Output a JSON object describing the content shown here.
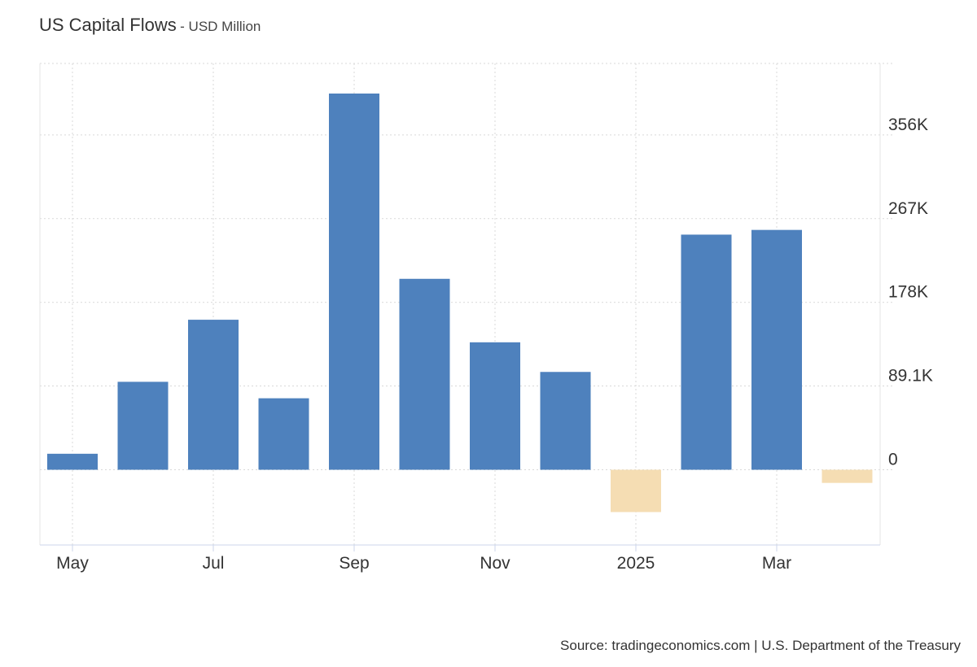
{
  "header": {
    "title": "US Capital Flows",
    "subtitle": "- USD Million"
  },
  "footer": {
    "source": "Source: tradingeconomics.com | U.S. Department of the Treasury"
  },
  "chart_data": {
    "type": "bar",
    "title": "US Capital Flows",
    "subtitle": "- USD Million",
    "xlabel": "",
    "ylabel": "",
    "y_axis_position": "right",
    "grid": true,
    "x_tick_labels": [
      "May",
      "Jul",
      "Sep",
      "Nov",
      "2025",
      "Mar"
    ],
    "x_tick_months": [
      "2024-05",
      "2024-07",
      "2024-09",
      "2024-11",
      "2025-01",
      "2025-03"
    ],
    "y_tick_labels": [
      "0",
      "89.1K",
      "178K",
      "267K",
      "356K"
    ],
    "y_tick_values": [
      0,
      89100,
      178000,
      267000,
      356000
    ],
    "ylim": [
      -80000,
      432000
    ],
    "categories": [
      "2024-05",
      "2024-06",
      "2024-07",
      "2024-08",
      "2024-09",
      "2024-10",
      "2024-11",
      "2024-12",
      "2025-01",
      "2025-02",
      "2025-03",
      "2025-04"
    ],
    "values": [
      17000,
      93500,
      159500,
      76000,
      400000,
      203000,
      135500,
      104000,
      -45000,
      250000,
      255000,
      -14000
    ],
    "colors": {
      "positive": "#4e81bd",
      "negative": "#f5ddb3"
    }
  }
}
